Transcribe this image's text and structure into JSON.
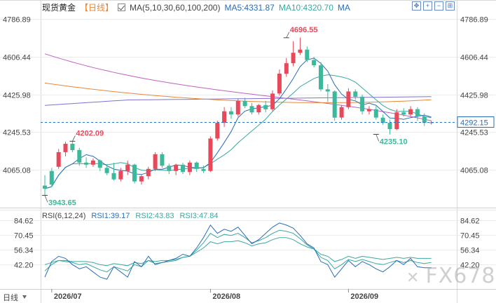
{
  "header": {
    "title": "现货黄金",
    "period": "【日线】",
    "ma_label": "MA(5,10,30,60,100,200)",
    "ma5": "MA5:4331.87",
    "ma10": "MA10:4320.70",
    "ma_more": "MA"
  },
  "rsi_header": {
    "label": "RSI(6,12,24)",
    "rsi1": "RSI1:39.17",
    "rsi2": "RSI2:43.83",
    "rsi3": "RSI3:47.84"
  },
  "toolbar": {
    "icons": [
      "crosshair-icon",
      "zoom-in-icon",
      "zoom-out-icon",
      "add-icon"
    ]
  },
  "watermark": {
    "text": "FX678"
  },
  "colors": {
    "up": "#e8495a",
    "down": "#3cb89a",
    "ma5": "#2a6db8",
    "ma10": "#3aa8a0",
    "ma30": "#c060c0",
    "ma60": "#e8883a",
    "ma100": "#8070d0",
    "current": "#2a6db8"
  },
  "chart_data": {
    "type": "candlestick",
    "price_axis": {
      "ylim": [
        3905,
        4830
      ],
      "ticks": [
        "4786.89",
        "4606.44",
        "4425.98",
        "4245.53",
        "4065.08"
      ]
    },
    "rsi_axis": {
      "ylim": [
        20,
        90
      ],
      "ticks": [
        "84.62",
        "70.45",
        "56.34",
        "42.20"
      ]
    },
    "x_labels": [
      {
        "label": "2026/07",
        "index": 1
      },
      {
        "label": "2026/08",
        "index": 24
      },
      {
        "label": "2026/09",
        "index": 44
      }
    ],
    "current_price": "4292.15",
    "annotations": [
      {
        "text": "4696.55",
        "index": 35,
        "value": 4696.55,
        "type": "high"
      },
      {
        "text": "4202.09",
        "index": 4,
        "value": 4202.09,
        "type": "high"
      },
      {
        "text": "3943.65",
        "index": 0,
        "value": 3943.65,
        "type": "low"
      },
      {
        "text": "4235.10",
        "index": 48,
        "value": 4235.1,
        "type": "low"
      }
    ],
    "candles": [
      [
        3990,
        3975,
        4040,
        3944
      ],
      [
        4060,
        3995,
        4075,
        3985
      ],
      [
        4080,
        4150,
        4165,
        4070
      ],
      [
        4150,
        4190,
        4200,
        4130
      ],
      [
        4190,
        4160,
        4202,
        4150
      ],
      [
        4160,
        4100,
        4170,
        4085
      ],
      [
        4100,
        4090,
        4125,
        4075
      ],
      [
        4090,
        4110,
        4120,
        4080
      ],
      [
        4110,
        4075,
        4115,
        4060
      ],
      [
        4075,
        4050,
        4090,
        4040
      ],
      [
        4050,
        4020,
        4100,
        4015
      ],
      [
        4020,
        4060,
        4075,
        4010
      ],
      [
        4060,
        4090,
        4110,
        4040
      ],
      [
        4090,
        4010,
        4095,
        4000
      ],
      [
        4010,
        4035,
        4045,
        3995
      ],
      [
        4035,
        4070,
        4080,
        4020
      ],
      [
        4070,
        4140,
        4150,
        4060
      ],
      [
        4140,
        4085,
        4150,
        4075
      ],
      [
        4085,
        4060,
        4095,
        4045
      ],
      [
        4060,
        4090,
        4095,
        4040
      ],
      [
        4090,
        4055,
        4100,
        4045
      ],
      [
        4055,
        4100,
        4110,
        4040
      ],
      [
        4100,
        4070,
        4105,
        4055
      ],
      [
        4070,
        4060,
        4085,
        4050
      ],
      [
        4060,
        4215,
        4225,
        4055
      ],
      [
        4215,
        4290,
        4300,
        4205
      ],
      [
        4290,
        4345,
        4365,
        4270
      ],
      [
        4345,
        4330,
        4365,
        4310
      ],
      [
        4330,
        4395,
        4405,
        4320
      ],
      [
        4395,
        4370,
        4410,
        4360
      ],
      [
        4370,
        4340,
        4385,
        4330
      ],
      [
        4340,
        4375,
        4380,
        4330
      ],
      [
        4375,
        4355,
        4395,
        4340
      ],
      [
        4355,
        4430,
        4445,
        4345
      ],
      [
        4430,
        4525,
        4545,
        4420
      ],
      [
        4525,
        4575,
        4600,
        4510
      ],
      [
        4575,
        4625,
        4680,
        4560
      ],
      [
        4625,
        4640,
        4697,
        4615
      ],
      [
        4640,
        4590,
        4655,
        4580
      ],
      [
        4590,
        4565,
        4605,
        4555
      ],
      [
        4565,
        4450,
        4580,
        4440
      ],
      [
        4450,
        4440,
        4475,
        4390
      ],
      [
        4440,
        4315,
        4445,
        4300
      ],
      [
        4315,
        4365,
        4375,
        4305
      ],
      [
        4365,
        4440,
        4455,
        4355
      ],
      [
        4440,
        4415,
        4450,
        4400
      ],
      [
        4415,
        4345,
        4425,
        4330
      ],
      [
        4345,
        4355,
        4370,
        4330
      ],
      [
        4355,
        4315,
        4370,
        4305
      ],
      [
        4315,
        4290,
        4330,
        4280
      ],
      [
        4290,
        4260,
        4305,
        4235
      ],
      [
        4260,
        4340,
        4355,
        4255
      ],
      [
        4340,
        4330,
        4360,
        4320
      ],
      [
        4330,
        4355,
        4370,
        4320
      ],
      [
        4355,
        4320,
        4365,
        4300
      ],
      [
        4320,
        4290,
        4335,
        4275
      ],
      [
        4290,
        4292,
        4300,
        4282
      ]
    ],
    "rsi": {
      "rsi1": [
        30,
        45,
        50,
        48,
        42,
        38,
        40,
        35,
        30,
        28,
        40,
        35,
        30,
        45,
        40,
        50,
        42,
        44,
        46,
        48,
        52,
        50,
        58,
        68,
        80,
        72,
        76,
        74,
        78,
        70,
        62,
        66,
        72,
        78,
        82,
        80,
        77,
        70,
        62,
        58,
        45,
        42,
        30,
        38,
        46,
        40,
        45,
        42,
        38,
        35,
        40,
        46,
        42,
        48,
        40,
        39,
        39
      ],
      "rsi2": [
        36,
        42,
        46,
        45,
        44,
        42,
        43,
        40,
        37,
        35,
        40,
        38,
        36,
        42,
        40,
        46,
        43,
        44,
        45,
        46,
        49,
        50,
        56,
        63,
        72,
        68,
        71,
        70,
        72,
        68,
        63,
        65,
        68,
        72,
        75,
        74,
        72,
        67,
        61,
        57,
        49,
        46,
        38,
        42,
        47,
        45,
        47,
        45,
        43,
        42,
        44,
        46,
        44,
        46,
        44,
        43,
        44
      ],
      "rsi3": [
        42,
        44,
        46,
        46,
        45,
        45,
        45,
        44,
        42,
        41,
        43,
        42,
        41,
        44,
        43,
        46,
        45,
        46,
        46,
        47,
        49,
        50,
        54,
        58,
        64,
        62,
        64,
        64,
        65,
        63,
        60,
        62,
        63,
        66,
        68,
        68,
        66,
        62,
        59,
        57,
        52,
        50,
        45,
        47,
        50,
        48,
        50,
        49,
        48,
        47,
        48,
        49,
        48,
        49,
        48,
        48,
        48
      ]
    },
    "x_axis_extra": "日线"
  }
}
